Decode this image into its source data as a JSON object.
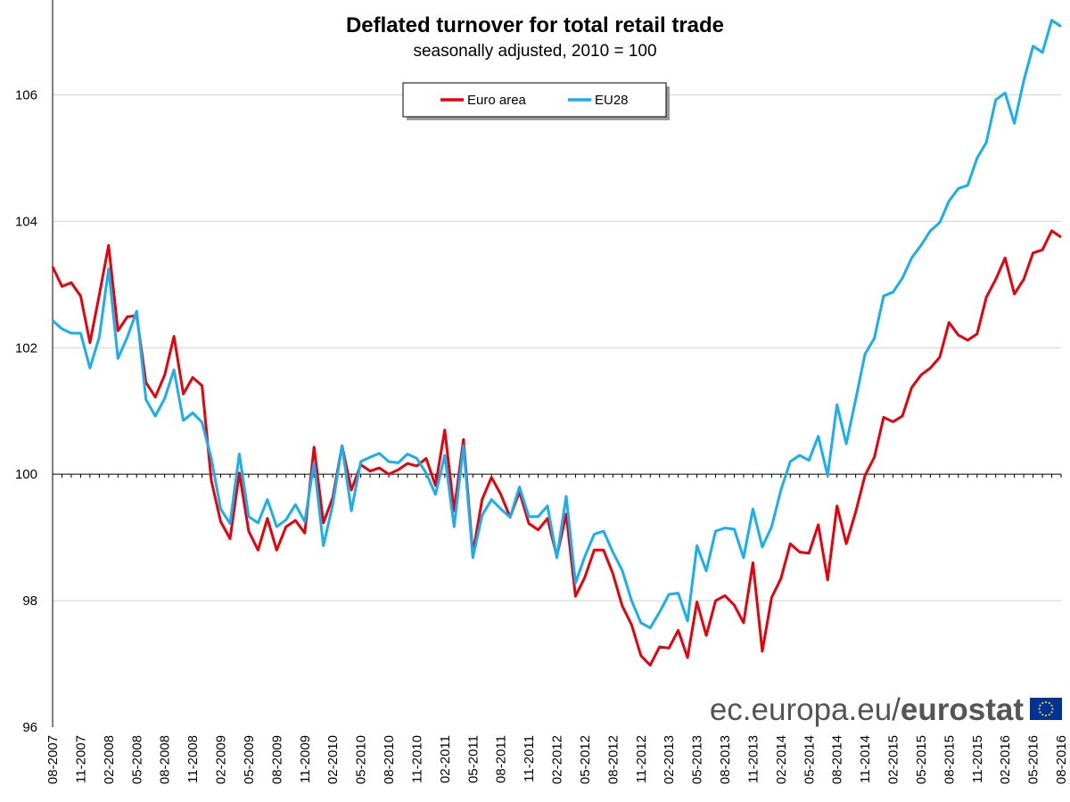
{
  "chart_data": {
    "type": "line",
    "title": "Deflated turnover for total retail trade",
    "subtitle": "seasonally adjusted, 2010 = 100",
    "ylim": [
      96,
      107.5
    ],
    "yticks": [
      96,
      98,
      100,
      102,
      104,
      106
    ],
    "grid": "horizontal",
    "legend_position": "top-center",
    "x_tick_labels": [
      "08-2007",
      "11-2007",
      "02-2008",
      "05-2008",
      "08-2008",
      "11-2008",
      "02-2009",
      "05-2009",
      "08-2009",
      "11-2009",
      "02-2010",
      "05-2010",
      "08-2010",
      "11-2010",
      "02-2011",
      "05-2011",
      "08-2011",
      "11-2011",
      "02-2012",
      "05-2012",
      "08-2012",
      "11-2012",
      "02-2013",
      "05-2013",
      "08-2013",
      "11-2013",
      "02-2014",
      "05-2014",
      "08-2014",
      "11-2014",
      "02-2015",
      "05-2015",
      "08-2015",
      "11-2015",
      "02-2016",
      "05-2016",
      "08-2016"
    ],
    "series": [
      {
        "name": "Euro area",
        "color": "#e8000b",
        "values": [
          103.28,
          102.97,
          103.03,
          102.82,
          102.08,
          102.84,
          103.62,
          102.27,
          102.49,
          102.51,
          101.45,
          101.22,
          101.57,
          102.18,
          101.27,
          101.53,
          101.4,
          99.9,
          99.25,
          98.98,
          100.02,
          99.1,
          98.8,
          99.3,
          98.8,
          99.17,
          99.27,
          99.07,
          100.43,
          99.23,
          99.63,
          100.45,
          99.75,
          100.15,
          100.05,
          100.1,
          100.0,
          100.07,
          100.17,
          100.13,
          100.25,
          99.82,
          100.7,
          99.42,
          100.55,
          98.75,
          99.6,
          99.95,
          99.68,
          99.32,
          99.72,
          99.22,
          99.12,
          99.3,
          98.7,
          99.37,
          98.07,
          98.37,
          98.8,
          98.8,
          98.43,
          97.92,
          97.62,
          97.13,
          96.98,
          97.27,
          97.25,
          97.53,
          97.1,
          97.98,
          97.45,
          98.0,
          98.08,
          97.93,
          97.65,
          98.6,
          97.2,
          98.05,
          98.35,
          98.9,
          98.77,
          98.75,
          99.2,
          98.33,
          99.5,
          98.9,
          99.4,
          99.98,
          100.27,
          100.9,
          100.83,
          100.92,
          101.37,
          101.57,
          101.68,
          101.85,
          102.4,
          102.2,
          102.12,
          102.22,
          102.8,
          103.08,
          103.42,
          102.85,
          103.08,
          103.5,
          103.55,
          103.85,
          103.75
        ]
      },
      {
        "name": "EU28",
        "color": "#18aef0",
        "values": [
          102.43,
          102.3,
          102.23,
          102.23,
          101.68,
          102.17,
          103.25,
          101.83,
          102.17,
          102.58,
          101.18,
          100.92,
          101.2,
          101.65,
          100.85,
          100.97,
          100.82,
          100.25,
          99.45,
          99.22,
          100.32,
          99.33,
          99.23,
          99.6,
          99.17,
          99.28,
          99.52,
          99.25,
          100.18,
          98.87,
          99.52,
          100.45,
          99.42,
          100.2,
          100.27,
          100.33,
          100.2,
          100.18,
          100.32,
          100.25,
          100.02,
          99.68,
          100.3,
          99.17,
          100.45,
          98.68,
          99.35,
          99.6,
          99.45,
          99.32,
          99.8,
          99.33,
          99.33,
          99.5,
          98.68,
          99.65,
          98.28,
          98.7,
          99.05,
          99.1,
          98.77,
          98.48,
          98.0,
          97.65,
          97.57,
          97.82,
          98.1,
          98.12,
          97.68,
          98.87,
          98.47,
          99.1,
          99.15,
          99.13,
          98.68,
          99.45,
          98.85,
          99.17,
          99.75,
          100.2,
          100.3,
          100.22,
          100.6,
          99.98,
          101.1,
          100.48,
          101.18,
          101.9,
          102.15,
          102.82,
          102.88,
          103.1,
          103.42,
          103.62,
          103.85,
          103.98,
          104.32,
          104.52,
          104.57,
          105.0,
          105.25,
          105.92,
          106.03,
          105.55,
          106.22,
          106.77,
          106.67,
          107.18,
          107.08
        ]
      }
    ]
  },
  "brand": {
    "prefix": "ec.europa.eu/",
    "name": "eurostat"
  }
}
